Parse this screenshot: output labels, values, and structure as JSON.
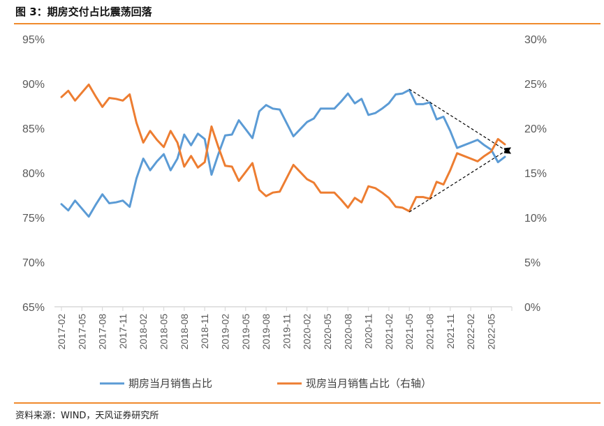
{
  "header": {
    "title": "图 3：期房交付占比震荡回落"
  },
  "footer": {
    "source": "资料来源：WIND，天风证券研究所"
  },
  "colors": {
    "accent": "#f08a2c",
    "series_blue": "#5b9bd5",
    "series_orange": "#ed7d31",
    "axis": "#d9d9d9"
  },
  "chart_data": {
    "type": "line",
    "title": "期房交付占比震荡回落",
    "y_left": {
      "ylim": [
        65,
        95
      ],
      "ticks": [
        95,
        90,
        85,
        80,
        75,
        70,
        65
      ],
      "tick_labels": [
        "95%",
        "90%",
        "85%",
        "80%",
        "75%",
        "70%",
        "65%"
      ]
    },
    "y_right": {
      "ylim": [
        0,
        30
      ],
      "ticks": [
        30,
        25,
        20,
        15,
        10,
        5,
        0
      ],
      "tick_labels": [
        "30%",
        "25%",
        "20%",
        "15%",
        "10%",
        "5%",
        "0%"
      ]
    },
    "x": [
      "2017-02",
      "2017-03",
      "2017-04",
      "2017-05",
      "2017-06",
      "2017-07",
      "2017-08",
      "2017-09",
      "2017-10",
      "2017-11",
      "2017-12",
      "2018-01",
      "2018-02",
      "2018-03",
      "2018-04",
      "2018-05",
      "2018-06",
      "2018-07",
      "2018-08",
      "2018-09",
      "2018-10",
      "2018-11",
      "2018-12",
      "2019-01",
      "2019-02",
      "2019-03",
      "2019-04",
      "2019-05",
      "2019-06",
      "2019-07",
      "2019-08",
      "2019-09",
      "2019-10",
      "2019-11",
      "2019-12",
      "2020-01",
      "2020-02",
      "2020-03",
      "2020-04",
      "2020-05",
      "2020-06",
      "2020-07",
      "2020-08",
      "2020-09",
      "2020-10",
      "2020-11",
      "2020-12",
      "2021-01",
      "2021-02",
      "2021-03",
      "2021-04",
      "2021-05",
      "2021-06",
      "2021-07",
      "2021-08",
      "2021-09",
      "2021-10",
      "2021-11",
      "2021-12",
      "2022-01",
      "2022-02",
      "2022-03",
      "2022-04",
      "2022-05",
      "2022-06",
      "2022-07"
    ],
    "x_tick_labels": [
      "2017-02",
      "2017-05",
      "2017-08",
      "2017-11",
      "2018-02",
      "2018-05",
      "2018-08",
      "2018-11",
      "2019-02",
      "2019-05",
      "2019-08",
      "2019-11",
      "2020-02",
      "2020-05",
      "2020-08",
      "2020-11",
      "2021-02",
      "2021-05",
      "2021-08",
      "2021-11",
      "2022-02",
      "2022-05"
    ],
    "series": [
      {
        "name": "期房当月销售占比",
        "axis": "left",
        "values": [
          76.5,
          75.8,
          76.9,
          76.0,
          75.1,
          76.4,
          77.6,
          76.6,
          76.7,
          76.9,
          76.2,
          79.4,
          81.6,
          80.3,
          81.3,
          82.1,
          80.3,
          81.6,
          84.3,
          83.1,
          84.4,
          83.8,
          79.8,
          82.1,
          84.2,
          84.3,
          85.9,
          84.9,
          83.9,
          86.9,
          87.6,
          87.2,
          87.1,
          85.6,
          84.1,
          84.9,
          85.7,
          86.1,
          87.2,
          87.2,
          87.2,
          88.0,
          88.9,
          87.8,
          88.3,
          86.5,
          86.7,
          87.2,
          87.8,
          88.8,
          88.9,
          89.3,
          87.7,
          87.7,
          87.9,
          86.0,
          86.3,
          84.7,
          82.8,
          83.1,
          83.4,
          83.7,
          83.1,
          82.6,
          81.2,
          81.8
        ]
      },
      {
        "name": "现房当月销售占比（右轴）",
        "axis": "right",
        "values": [
          23.5,
          24.2,
          23.1,
          24.0,
          24.9,
          23.6,
          22.4,
          23.4,
          23.3,
          23.1,
          23.8,
          20.6,
          18.4,
          19.7,
          18.7,
          17.9,
          19.7,
          18.4,
          15.7,
          16.9,
          15.6,
          16.2,
          20.2,
          17.9,
          15.8,
          15.7,
          14.1,
          15.1,
          16.1,
          13.1,
          12.4,
          12.8,
          12.9,
          14.4,
          15.9,
          15.1,
          14.3,
          13.9,
          12.8,
          12.8,
          12.8,
          12.0,
          11.1,
          12.2,
          11.7,
          13.5,
          13.3,
          12.8,
          12.2,
          11.2,
          11.1,
          10.7,
          12.3,
          12.3,
          12.1,
          14.0,
          13.7,
          15.3,
          17.2,
          16.9,
          16.6,
          16.3,
          16.9,
          17.4,
          18.8,
          18.2
        ]
      }
    ],
    "annotations": [
      "dashed converging trend lines with arrow markers"
    ]
  }
}
